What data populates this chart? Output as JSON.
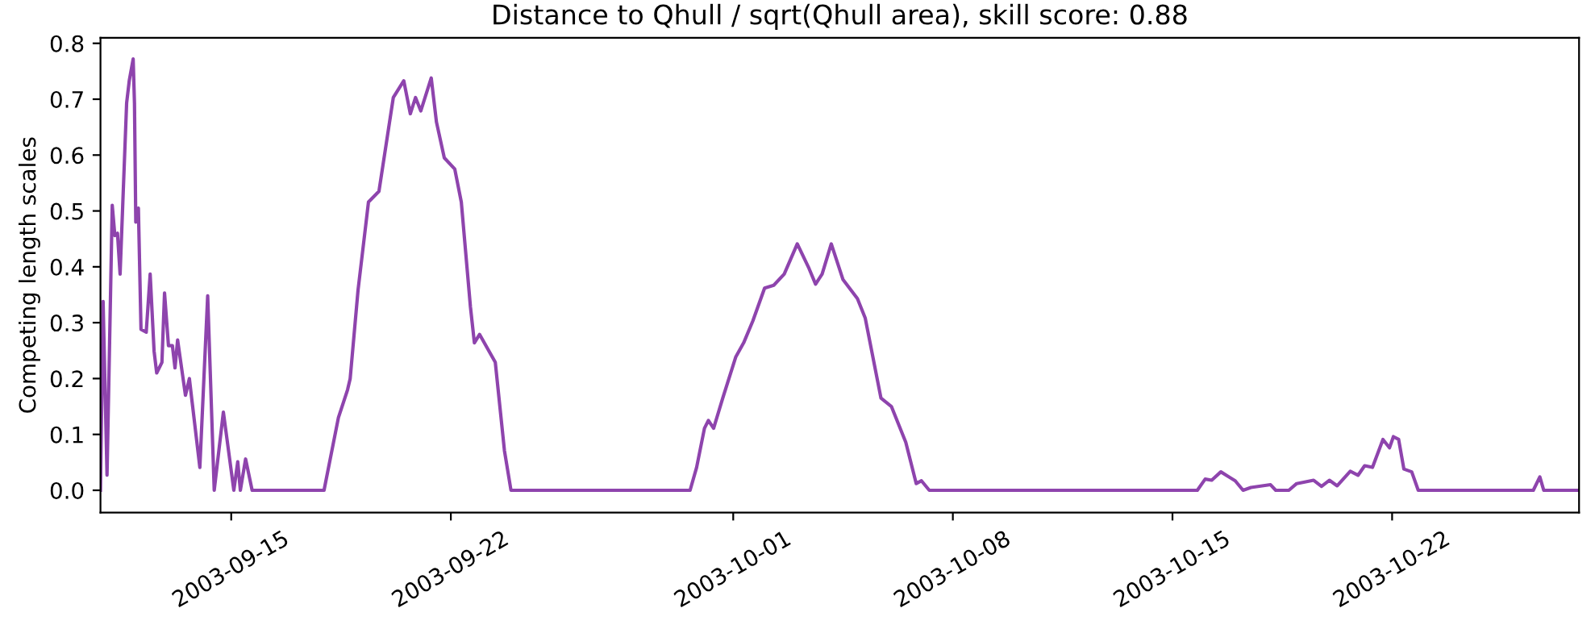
{
  "chart_data": {
    "type": "line",
    "title": "Distance to Qhull / sqrt(Qhull area), skill score: 0.88",
    "ylabel": "Competing length scales",
    "x": [
      "2003-09-10T20:00",
      "2003-09-10T22:00",
      "2003-09-11T01:00",
      "2003-09-11T05:00",
      "2003-09-11T07:00",
      "2003-09-11T09:00",
      "2003-09-11T11:00",
      "2003-09-11T16:00",
      "2003-09-11T18:00",
      "2003-09-11T21:00",
      "2003-09-11T22:00",
      "2003-09-11T23:00",
      "2003-09-12T01:00",
      "2003-09-12T03:00",
      "2003-09-12T07:00",
      "2003-09-12T10:00",
      "2003-09-12T13:00",
      "2003-09-12T15:00",
      "2003-09-12T19:00",
      "2003-09-12T21:00",
      "2003-09-13T00:00",
      "2003-09-13T03:00",
      "2003-09-13T05:00",
      "2003-09-13T07:00",
      "2003-09-13T13:00",
      "2003-09-13T16:00",
      "2003-09-13T18:00",
      "2003-09-14T00:00",
      "2003-09-14T06:00",
      "2003-09-14T11:00",
      "2003-09-14T18:00",
      "2003-09-15T02:00",
      "2003-09-15T05:00",
      "2003-09-15T07:00",
      "2003-09-15T11:00",
      "2003-09-15T16:00",
      "2003-09-17T23:00",
      "2003-09-18T10:00",
      "2003-09-18T17:00",
      "2003-09-18T19:00",
      "2003-09-19T01:00",
      "2003-09-19T09:00",
      "2003-09-19T17:00",
      "2003-09-20T04:00",
      "2003-09-20T12:00",
      "2003-09-20T17:00",
      "2003-09-20T21:00",
      "2003-09-21T01:00",
      "2003-09-21T09:00",
      "2003-09-21T13:00",
      "2003-09-21T19:00",
      "2003-09-22T03:00",
      "2003-09-22T08:00",
      "2003-09-22T15:00",
      "2003-09-22T18:00",
      "2003-09-22T22:00",
      "2003-09-23T10:00",
      "2003-09-23T17:00",
      "2003-09-23T22:00",
      "2003-09-29T15:00",
      "2003-09-29T20:00",
      "2003-09-30T02:00",
      "2003-09-30T05:00",
      "2003-09-30T09:00",
      "2003-09-30T16:00",
      "2003-10-01T02:00",
      "2003-10-01T08:00",
      "2003-10-01T15:00",
      "2003-10-02T00:00",
      "2003-10-02T07:00",
      "2003-10-02T15:00",
      "2003-10-03T01:00",
      "2003-10-03T10:00",
      "2003-10-03T15:00",
      "2003-10-03T20:00",
      "2003-10-04T03:00",
      "2003-10-04T12:00",
      "2003-10-04T23:00",
      "2003-10-05T05:00",
      "2003-10-05T17:00",
      "2003-10-06T01:00",
      "2003-10-06T12:00",
      "2003-10-06T20:00",
      "2003-10-07T00:00",
      "2003-10-07T06:00",
      "2003-10-15T19:00",
      "2003-10-16T01:00",
      "2003-10-16T06:00",
      "2003-10-16T13:00",
      "2003-10-17T00:00",
      "2003-10-17T06:00",
      "2003-10-17T12:00",
      "2003-10-18T03:00",
      "2003-10-18T07:00",
      "2003-10-18T17:00",
      "2003-10-18T23:00",
      "2003-10-19T12:00",
      "2003-10-19T18:00",
      "2003-10-20T00:00",
      "2003-10-20T06:00",
      "2003-10-20T16:00",
      "2003-10-20T22:00",
      "2003-10-21T03:00",
      "2003-10-21T09:00",
      "2003-10-21T17:00",
      "2003-10-21T22:00",
      "2003-10-22T01:00",
      "2003-10-22T05:00",
      "2003-10-22T09:00",
      "2003-10-22T15:00",
      "2003-10-22T20:00",
      "2003-10-26T12:00",
      "2003-10-26T17:00",
      "2003-10-26T20:00",
      "2003-10-27T23:00"
    ],
    "series": [
      {
        "color": "#8e44ad",
        "values": [
          0,
          0.338,
          0.027,
          0.51,
          0.456,
          0.46,
          0.387,
          0.693,
          0.733,
          0.772,
          0.693,
          0.48,
          0.505,
          0.288,
          0.283,
          0.387,
          0.249,
          0.21,
          0.229,
          0.353,
          0.259,
          0.259,
          0.219,
          0.269,
          0.17,
          0.2,
          0.16,
          0.041,
          0.348,
          0,
          0.14,
          0,
          0.051,
          0,
          0.056,
          0,
          0,
          0.13,
          0.18,
          0.2,
          0.358,
          0.516,
          0.535,
          0.703,
          0.733,
          0.674,
          0.703,
          0.679,
          0.738,
          0.659,
          0.595,
          0.575,
          0.516,
          0.328,
          0.264,
          0.279,
          0.229,
          0.071,
          0,
          0,
          0.041,
          0.111,
          0.125,
          0.111,
          0.165,
          0.239,
          0.264,
          0.303,
          0.362,
          0.367,
          0.387,
          0.441,
          0.397,
          0.369,
          0.387,
          0.441,
          0.377,
          0.343,
          0.308,
          0.165,
          0.15,
          0.086,
          0.012,
          0.017,
          0,
          0,
          0.02,
          0.018,
          0.033,
          0.017,
          0,
          0.005,
          0.01,
          0,
          0,
          0.012,
          0.018,
          0.007,
          0.018,
          0.008,
          0.034,
          0.027,
          0.044,
          0.041,
          0.091,
          0.076,
          0.096,
          0.091,
          0.038,
          0.033,
          0,
          0,
          0.024,
          0,
          0
        ]
      }
    ],
    "xlim": [
      "2003-09-10T20:00",
      "2003-10-27T23:00"
    ],
    "xticks": [
      "2003-09-15",
      "2003-09-22",
      "2003-10-01",
      "2003-10-08",
      "2003-10-15",
      "2003-10-22"
    ],
    "ylim": [
      -0.04,
      0.81
    ],
    "yticks": [
      {
        "value": 0,
        "label": "0.0"
      },
      0.1,
      0.2,
      0.3,
      0.4,
      0.5,
      0.6,
      0.7,
      0.8
    ],
    "grid": false,
    "legend": false
  }
}
